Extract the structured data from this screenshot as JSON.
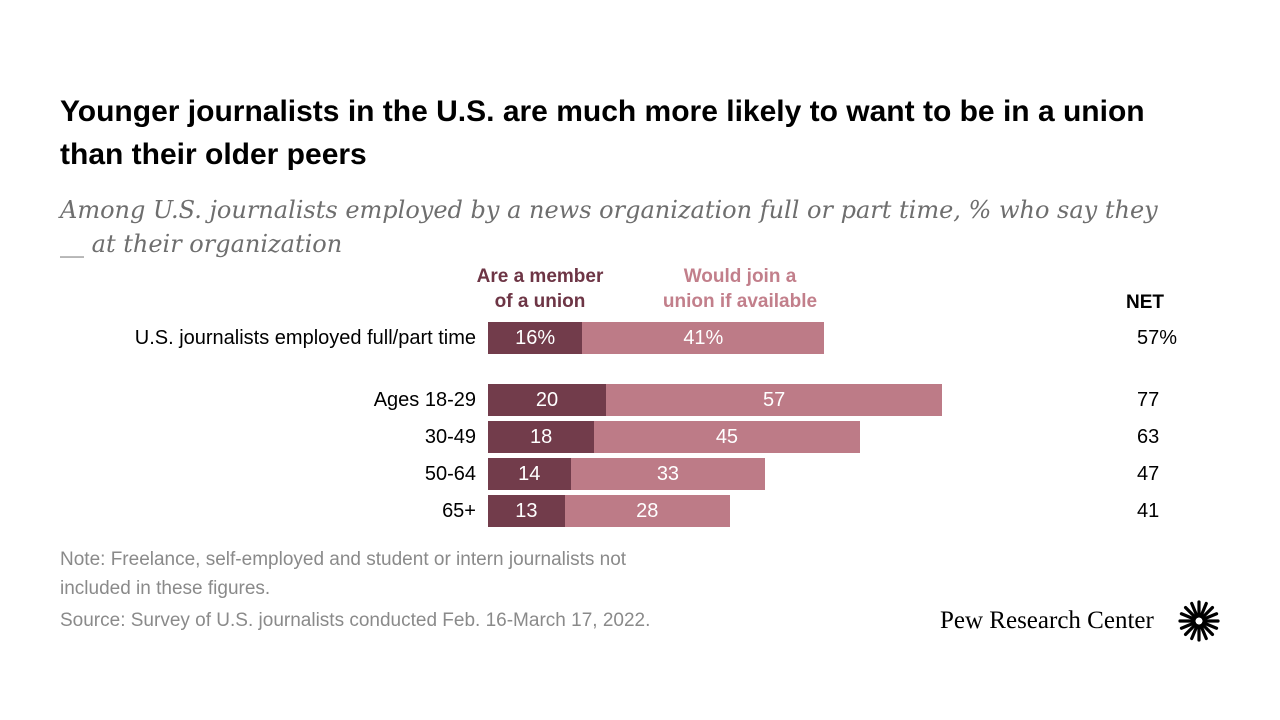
{
  "header": {
    "title": "Younger journalists in the U.S. are much more likely to want to be in a union than their older peers",
    "subtitle": "Among U.S. journalists employed by a news organization full or part time, % who say they __ at their organization"
  },
  "chart_data": {
    "type": "bar",
    "orientation": "horizontal",
    "stacked": true,
    "categories": [
      "U.S. journalists employed full/part time",
      "Ages 18-29",
      "30-49",
      "50-64",
      "65+"
    ],
    "series": [
      {
        "name": "Are a member\nof a union",
        "values": [
          16,
          20,
          18,
          14,
          13
        ],
        "labels": [
          "16%",
          "20",
          "18",
          "14",
          "13"
        ],
        "color": "#723c4b"
      },
      {
        "name": "Would join a\nunion if available",
        "values": [
          41,
          57,
          45,
          33,
          28
        ],
        "labels": [
          "41%",
          "57",
          "45",
          "33",
          "28"
        ],
        "color": "#bd7b87"
      }
    ],
    "net": {
      "header": "NET",
      "labels": [
        "57%",
        "77",
        "63",
        "47",
        "41"
      ]
    },
    "xlim": [
      0,
      100
    ],
    "grid": false
  },
  "footer": {
    "note_line1": "Note: Freelance, self-employed and student or intern journalists not",
    "note_line2": "included in these figures.",
    "source": "Source: Survey of U.S. journalists conducted Feb. 16-March 17, 2022.",
    "brand": "Pew Research Center",
    "logo_icon": "pew-sunburst-icon"
  }
}
